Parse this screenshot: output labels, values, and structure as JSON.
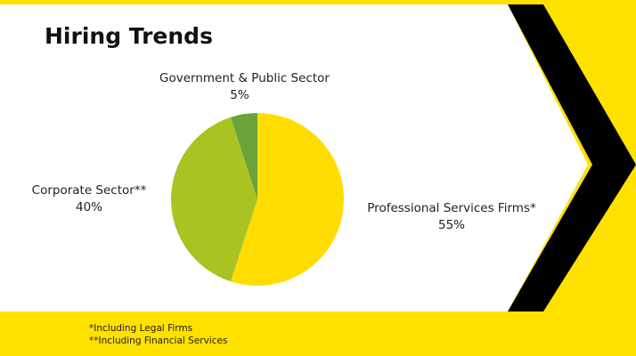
{
  "slide": {
    "title": "Hiring Trends",
    "footnotes": [
      "*Including Legal Firms",
      "**Including Financial Services"
    ]
  },
  "colors": {
    "background": "#FFE100",
    "panel": "#FFFFFF",
    "chevron": "#000000"
  },
  "chart_data": {
    "type": "pie",
    "title": "Hiring Trends",
    "slices": [
      {
        "label": "Professional Services Firms*",
        "value": 55,
        "value_label": "55%",
        "color": "#FFDD00"
      },
      {
        "label": "Corporate Sector**",
        "value": 40,
        "value_label": "40%",
        "color": "#AAC322"
      },
      {
        "label": "Government & Public Sector",
        "value": 5,
        "value_label": "5%",
        "color": "#6BA23A"
      }
    ],
    "start_angle": "12 o'clock, clockwise",
    "legend": "none (direct labels)"
  }
}
